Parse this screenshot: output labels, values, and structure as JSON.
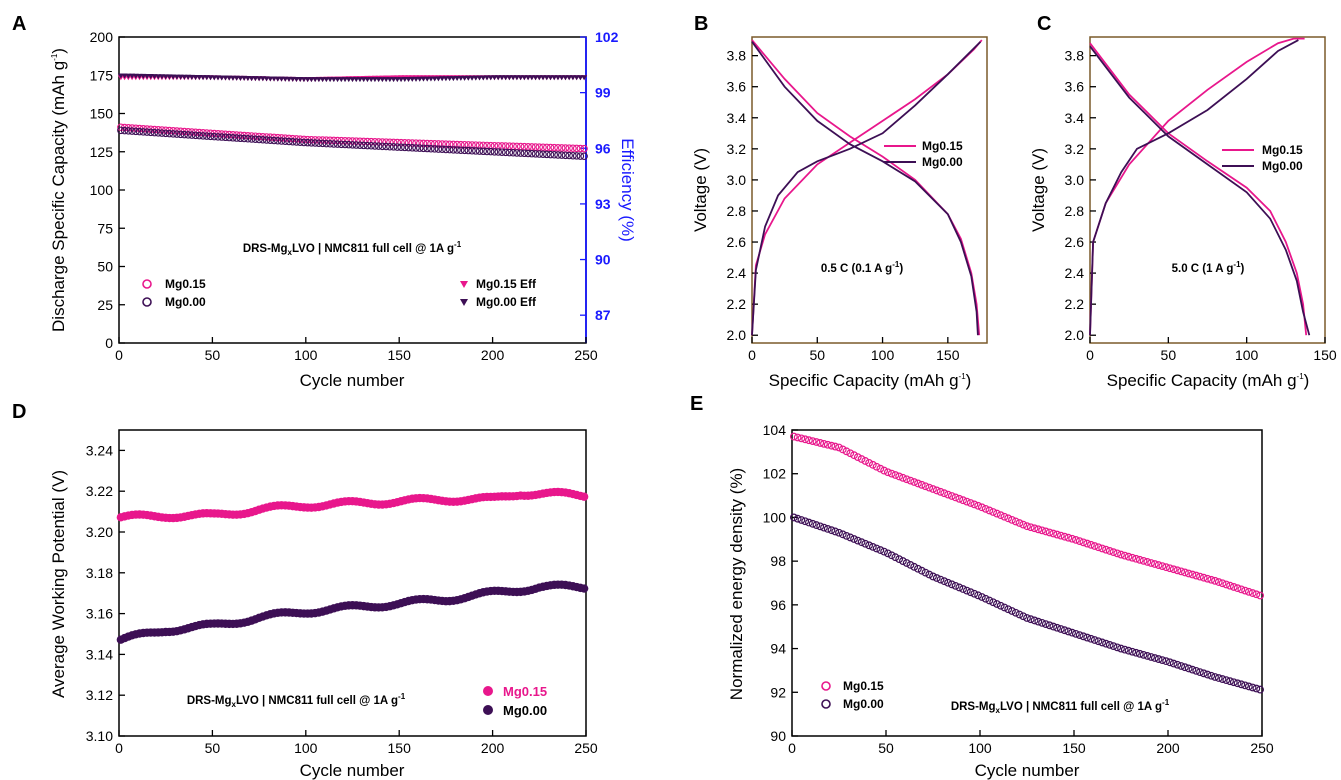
{
  "colors": {
    "mg015": "#e8178c",
    "mg000": "#3d0f55",
    "eff_axis": "#1a1aff",
    "frame": "#000000",
    "frame_bc": "#7a5a2a"
  },
  "panels": {
    "A": {
      "letter": "A",
      "xlabel": "Cycle number",
      "ylabel": "Discharge Specific Capacity (mAh g-1)",
      "ylabel_main": "Discharge Specific Capacity (mAh g",
      "ylabel_sup": "-1",
      "ylabel_end": ")",
      "y2label": "Efficiency (%)",
      "xticks": [
        "0",
        "50",
        "100",
        "150",
        "200",
        "250"
      ],
      "yticks": [
        "0",
        "25",
        "50",
        "75",
        "100",
        "125",
        "150",
        "175",
        "200"
      ],
      "y2ticks": [
        "87",
        "90",
        "93",
        "96",
        "99",
        "102"
      ],
      "anno_main": "DRS-Mg",
      "anno_sub": "x",
      "anno_rest": "LVO | NMC811 full cell @ 1A g",
      "anno_sup": "-1",
      "legend": [
        "Mg0.15",
        "Mg0.00",
        "Mg0.15 Eff",
        "Mg0.00 Eff"
      ]
    },
    "B": {
      "letter": "B",
      "xlabel_main": "Specific Capacity (mAh g",
      "xlabel_sup": "-1",
      "xlabel_end": ")",
      "ylabel": "Voltage (V)",
      "xticks": [
        "0",
        "50",
        "100",
        "150"
      ],
      "yticks": [
        "2.0",
        "2.2",
        "2.4",
        "2.6",
        "2.8",
        "3.0",
        "3.2",
        "3.4",
        "3.6",
        "3.8"
      ],
      "anno_main": "0.5 C (0.1 A g",
      "anno_sup": "-1",
      "anno_end": ")",
      "legend": [
        "Mg0.15",
        "Mg0.00"
      ]
    },
    "C": {
      "letter": "C",
      "xlabel_main": "Specific Capacity (mAh g",
      "xlabel_sup": "-1",
      "xlabel_end": ")",
      "ylabel": "Voltage (V)",
      "xticks": [
        "0",
        "50",
        "100",
        "150"
      ],
      "yticks": [
        "2.0",
        "2.2",
        "2.4",
        "2.6",
        "2.8",
        "3.0",
        "3.2",
        "3.4",
        "3.6",
        "3.8"
      ],
      "anno_main": "5.0 C (1 A g",
      "anno_sup": "-1",
      "anno_end": ")",
      "legend": [
        "Mg0.15",
        "Mg0.00"
      ]
    },
    "D": {
      "letter": "D",
      "xlabel": "Cycle number",
      "ylabel": "Average Working Potential (V)",
      "xticks": [
        "0",
        "50",
        "100",
        "150",
        "200",
        "250"
      ],
      "yticks": [
        "3.10",
        "3.12",
        "3.14",
        "3.16",
        "3.18",
        "3.20",
        "3.22",
        "3.24"
      ],
      "anno_main": "DRS-Mg",
      "anno_sub": "x",
      "anno_rest": "LVO | NMC811 full cell @ 1A g",
      "anno_sup": "-1",
      "legend": [
        "Mg0.15",
        "Mg0.00"
      ]
    },
    "E": {
      "letter": "E",
      "xlabel": "Cycle number",
      "ylabel": "Normalized energy density (%)",
      "xticks": [
        "0",
        "50",
        "100",
        "150",
        "200",
        "250"
      ],
      "yticks": [
        "90",
        "92",
        "94",
        "96",
        "98",
        "100",
        "102",
        "104"
      ],
      "anno_main": "DRS-Mg",
      "anno_sub": "x",
      "anno_rest": "LVO | NMC811 full cell @ 1A g",
      "anno_sup": "-1",
      "legend": [
        "Mg0.15",
        "Mg0.00"
      ]
    }
  },
  "chart_data": [
    {
      "panel": "A",
      "type": "scatter",
      "xlim": [
        0,
        250
      ],
      "ylim": [
        0,
        200
      ],
      "y2lim": [
        85.5,
        102
      ],
      "series": [
        {
          "name": "Mg0.15",
          "axis": "left",
          "marker": "open-circle",
          "x": [
            1,
            50,
            100,
            150,
            200,
            250
          ],
          "y": [
            141,
            137,
            133,
            131,
            129,
            127
          ]
        },
        {
          "name": "Mg0.00",
          "axis": "left",
          "marker": "open-circle",
          "x": [
            1,
            50,
            100,
            150,
            200,
            250
          ],
          "y": [
            139,
            135,
            131,
            128,
            125,
            122
          ]
        },
        {
          "name": "Mg0.15 Eff",
          "axis": "right",
          "marker": "down-triangle",
          "x": [
            1,
            50,
            100,
            150,
            200,
            250
          ],
          "y": [
            99.8,
            99.8,
            99.7,
            99.8,
            99.8,
            99.8
          ]
        },
        {
          "name": "Mg0.00 Eff",
          "axis": "right",
          "marker": "down-triangle",
          "x": [
            1,
            50,
            100,
            150,
            200,
            250
          ],
          "y": [
            99.9,
            99.8,
            99.7,
            99.7,
            99.8,
            99.8
          ]
        }
      ]
    },
    {
      "panel": "B",
      "type": "line",
      "xlim": [
        0,
        180
      ],
      "ylim": [
        1.95,
        3.92
      ],
      "series": [
        {
          "name": "Mg0.15",
          "branch": "charge",
          "x": [
            0,
            3,
            10,
            25,
            50,
            75,
            100,
            125,
            150,
            170,
            176
          ],
          "y": [
            2.0,
            2.45,
            2.65,
            2.88,
            3.1,
            3.24,
            3.38,
            3.52,
            3.68,
            3.84,
            3.9
          ]
        },
        {
          "name": "Mg0.15",
          "branch": "discharge",
          "x": [
            0,
            25,
            50,
            75,
            100,
            125,
            150,
            160,
            168,
            172,
            174
          ],
          "y": [
            3.9,
            3.65,
            3.43,
            3.28,
            3.15,
            3.0,
            2.78,
            2.62,
            2.4,
            2.2,
            2.0
          ]
        },
        {
          "name": "Mg0.00",
          "branch": "charge",
          "x": [
            0,
            3,
            10,
            20,
            35,
            50,
            75,
            100,
            125,
            150,
            175
          ],
          "y": [
            2.0,
            2.42,
            2.7,
            2.9,
            3.05,
            3.12,
            3.2,
            3.3,
            3.48,
            3.68,
            3.89
          ]
        },
        {
          "name": "Mg0.00",
          "branch": "discharge",
          "x": [
            0,
            25,
            50,
            75,
            100,
            125,
            150,
            160,
            168,
            172,
            173
          ],
          "y": [
            3.89,
            3.6,
            3.38,
            3.23,
            3.12,
            2.99,
            2.78,
            2.6,
            2.38,
            2.15,
            2.0
          ]
        }
      ]
    },
    {
      "panel": "C",
      "type": "line",
      "xlim": [
        0,
        150
      ],
      "ylim": [
        1.95,
        3.92
      ],
      "series": [
        {
          "name": "Mg0.15",
          "branch": "charge",
          "x": [
            0,
            2,
            10,
            25,
            50,
            75,
            100,
            120,
            130,
            137
          ],
          "y": [
            2.0,
            2.6,
            2.85,
            3.1,
            3.38,
            3.58,
            3.76,
            3.88,
            3.91,
            3.91
          ]
        },
        {
          "name": "Mg0.15",
          "branch": "discharge",
          "x": [
            0,
            25,
            50,
            75,
            100,
            115,
            125,
            132,
            136,
            138
          ],
          "y": [
            3.88,
            3.55,
            3.3,
            3.12,
            2.95,
            2.8,
            2.6,
            2.4,
            2.2,
            2.0
          ]
        },
        {
          "name": "Mg0.00",
          "branch": "charge",
          "x": [
            0,
            2,
            10,
            20,
            30,
            50,
            75,
            100,
            120,
            133
          ],
          "y": [
            2.0,
            2.6,
            2.85,
            3.05,
            3.2,
            3.3,
            3.45,
            3.65,
            3.83,
            3.9
          ]
        },
        {
          "name": "Mg0.00",
          "branch": "discharge",
          "x": [
            0,
            25,
            50,
            75,
            100,
            115,
            125,
            132,
            136,
            140
          ],
          "y": [
            3.86,
            3.53,
            3.28,
            3.1,
            2.92,
            2.75,
            2.55,
            2.35,
            2.15,
            2.0
          ]
        }
      ]
    },
    {
      "panel": "D",
      "type": "scatter",
      "xlim": [
        0,
        250
      ],
      "ylim": [
        3.1,
        3.25
      ],
      "series": [
        {
          "name": "Mg0.15",
          "x": [
            1,
            25,
            50,
            75,
            100,
            125,
            150,
            175,
            200,
            215,
            250
          ],
          "y": [
            3.207,
            3.208,
            3.208,
            3.211,
            3.213,
            3.214,
            3.215,
            3.216,
            3.216,
            3.219,
            3.218
          ]
        },
        {
          "name": "Mg0.00",
          "x": [
            1,
            25,
            50,
            75,
            100,
            125,
            150,
            175,
            200,
            225,
            250
          ],
          "y": [
            3.147,
            3.152,
            3.154,
            3.158,
            3.161,
            3.163,
            3.165,
            3.167,
            3.17,
            3.173,
            3.173
          ]
        }
      ]
    },
    {
      "panel": "E",
      "type": "scatter",
      "xlim": [
        0,
        250
      ],
      "ylim": [
        90,
        104
      ],
      "series": [
        {
          "name": "Mg0.15",
          "x": [
            1,
            25,
            50,
            75,
            100,
            125,
            150,
            175,
            200,
            225,
            250
          ],
          "y": [
            103.7,
            103.2,
            102.1,
            101.3,
            100.5,
            99.6,
            99.0,
            98.3,
            97.7,
            97.1,
            96.4
          ]
        },
        {
          "name": "Mg0.00",
          "x": [
            1,
            25,
            50,
            75,
            100,
            125,
            150,
            175,
            200,
            225,
            250
          ],
          "y": [
            100.0,
            99.3,
            98.4,
            97.3,
            96.4,
            95.4,
            94.7,
            94.0,
            93.4,
            92.7,
            92.1
          ]
        }
      ]
    }
  ]
}
